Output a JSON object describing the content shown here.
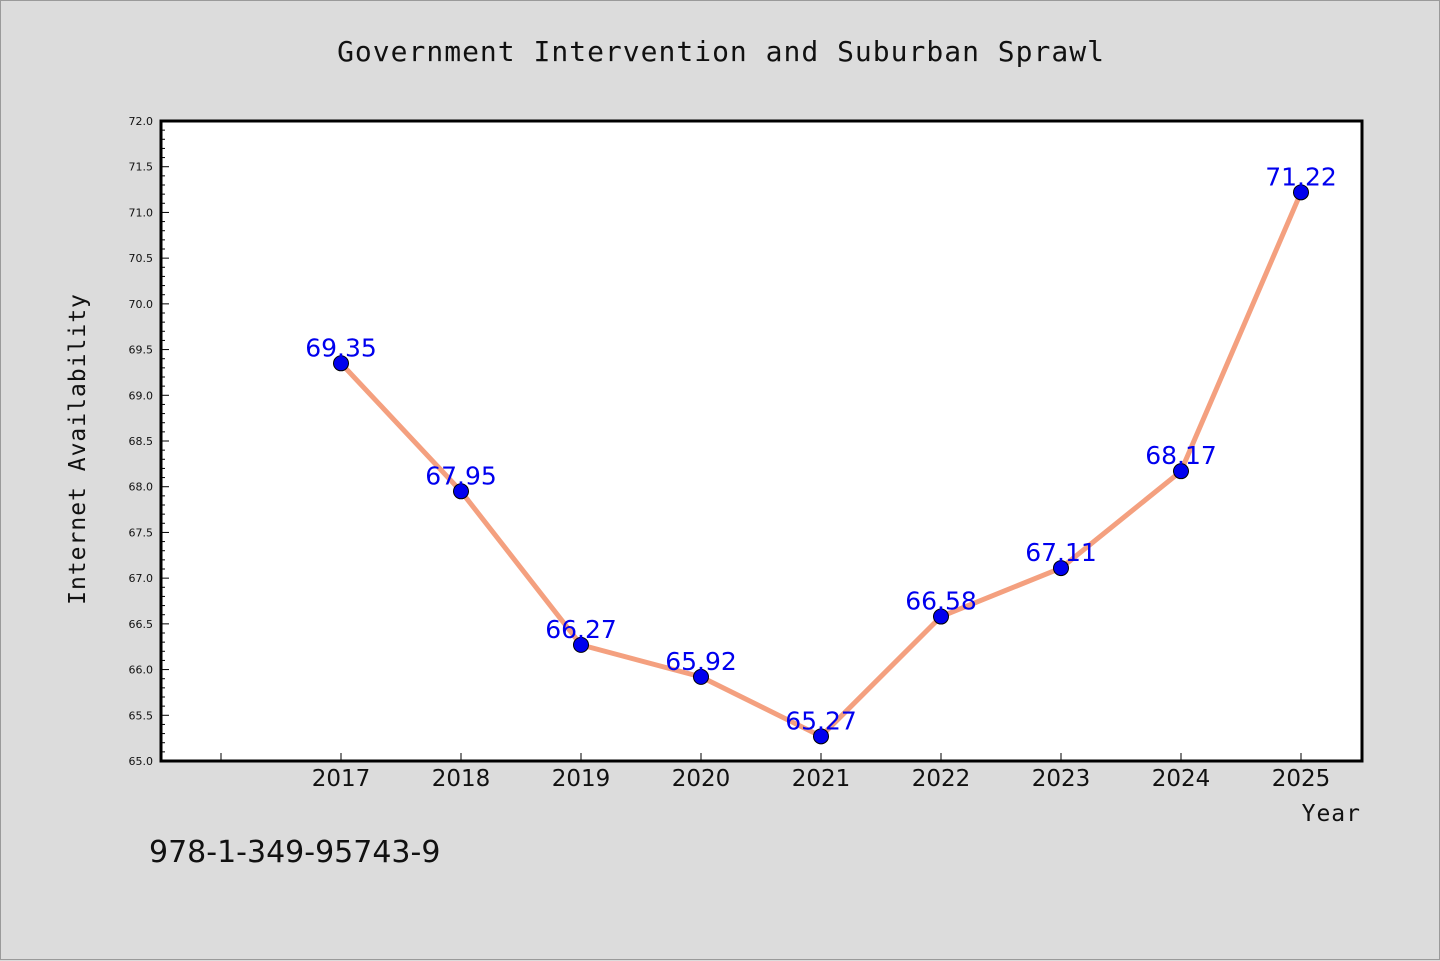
{
  "chart_data": {
    "type": "line",
    "title": "Government Intervention and Suburban Sprawl",
    "xlabel": "Year",
    "ylabel": "Internet Availability",
    "categories": [
      "2017",
      "2018",
      "2019",
      "2020",
      "2021",
      "2022",
      "2023",
      "2024",
      "2025"
    ],
    "values": [
      69.35,
      67.95,
      66.27,
      65.92,
      65.27,
      66.58,
      67.11,
      68.17,
      71.22
    ],
    "data_labels": [
      "69.35",
      "67.95",
      "66.27",
      "65.92",
      "65.27",
      "66.58",
      "67.11",
      "68.17",
      "71.22"
    ],
    "ylim": [
      65.0,
      72.0
    ],
    "yticks": [
      "65.0",
      "65.5",
      "66.0",
      "66.5",
      "67.0",
      "67.5",
      "68.0",
      "68.5",
      "69.0",
      "69.5",
      "70.0",
      "70.5",
      "71.0",
      "71.5",
      "72.0"
    ],
    "grid": false,
    "line_color": "#f4a07f",
    "marker_color": "#0000ee",
    "label_color": "#0000ee"
  },
  "annotation": {
    "isbn": "978-1-349-95743-9"
  }
}
